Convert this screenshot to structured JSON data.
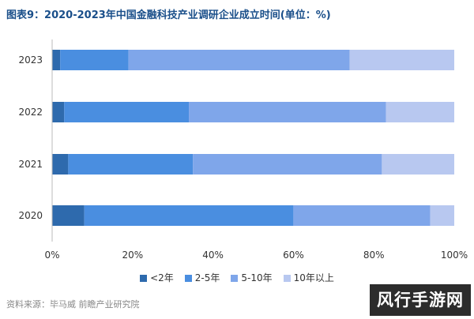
{
  "title": "图表9：2020-2023年中国金融科技产业调研企业成立时间(单位：%)",
  "source": "资料来源：毕马威 前瞻产业研究院",
  "watermark_corner": "风行手游网",
  "colors": {
    "segments": [
      "#2e6aad",
      "#4a8ee0",
      "#7fa6ea",
      "#b8c8f0"
    ],
    "title": "#1a4f8a",
    "axis": "#bbbbbb"
  },
  "chart_data": {
    "type": "bar",
    "orientation": "horizontal",
    "stacked": true,
    "categories": [
      "2023",
      "2022",
      "2021",
      "2020"
    ],
    "series": [
      {
        "name": "<2年",
        "values": [
          2,
          3,
          4,
          8
        ]
      },
      {
        "name": "2-5年",
        "values": [
          17,
          31,
          31,
          52
        ]
      },
      {
        "name": "5-10年",
        "values": [
          55,
          49,
          47,
          34
        ]
      },
      {
        "name": "10年以上",
        "values": [
          26,
          17,
          18,
          6
        ]
      }
    ],
    "xlim": [
      0,
      100
    ],
    "x_ticks": [
      "0%",
      "20%",
      "40%",
      "60%",
      "80%",
      "100%"
    ],
    "legend_position": "bottom"
  }
}
